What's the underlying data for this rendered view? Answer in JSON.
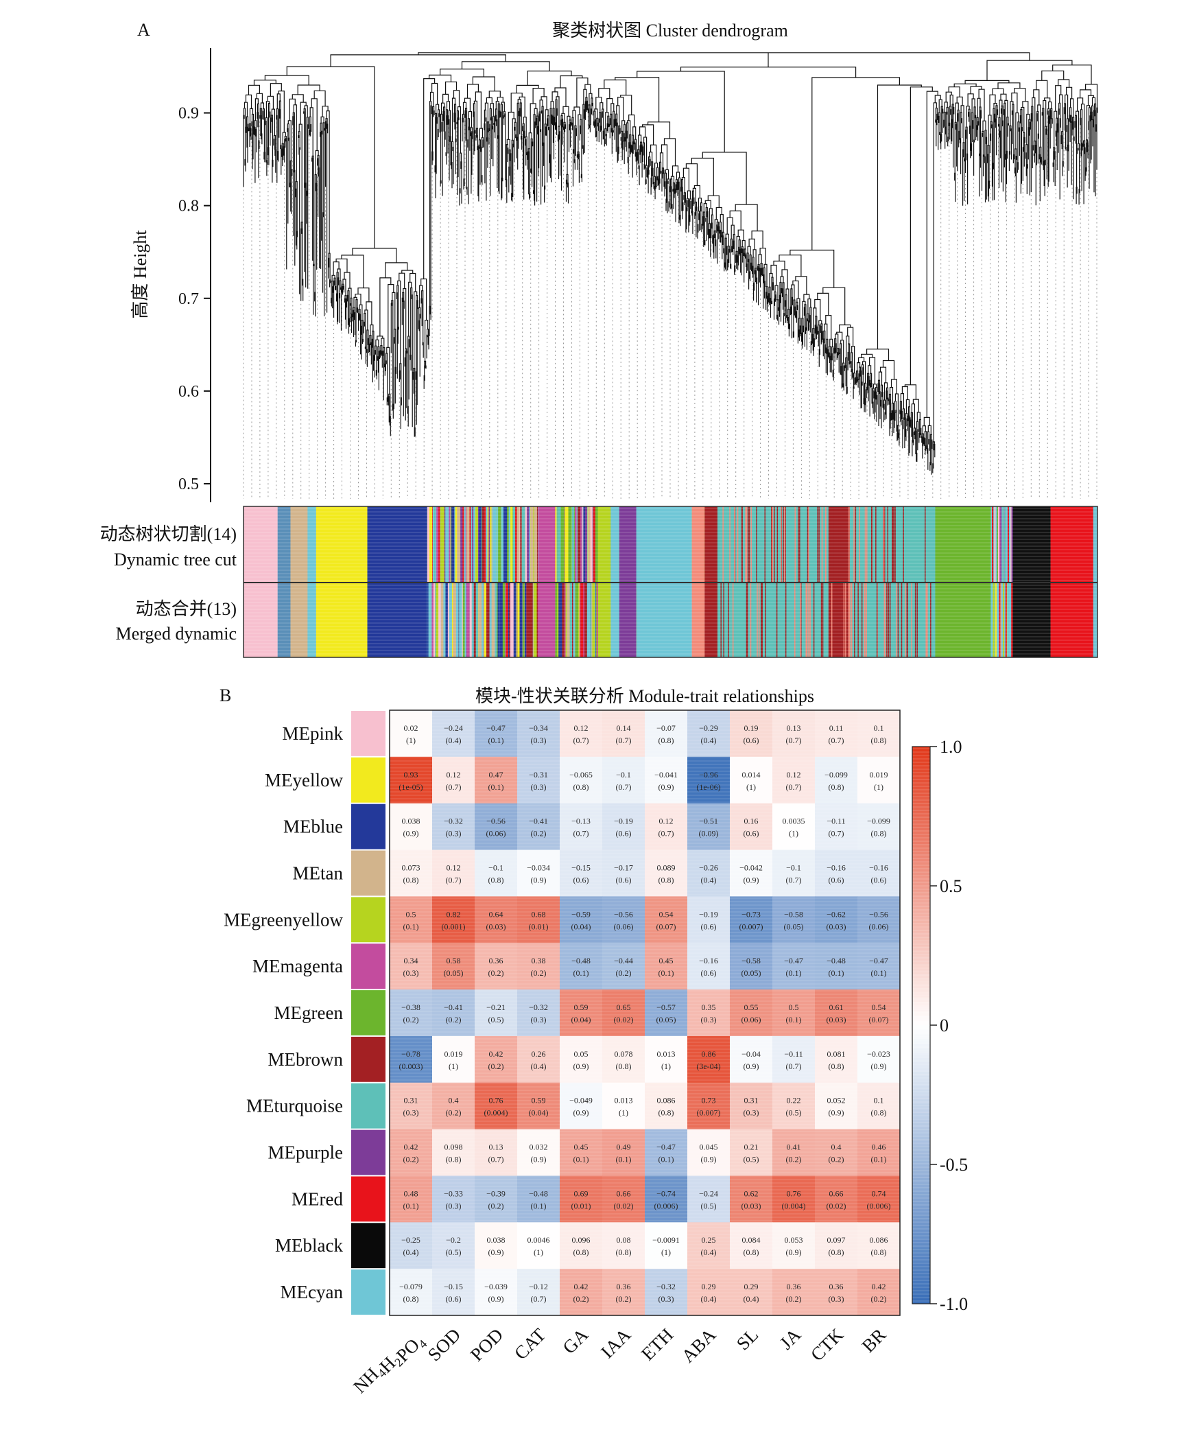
{
  "chart_data": [
    {
      "panel": "A",
      "type": "dendrogram",
      "title": "聚类树状图 Cluster dendrogram",
      "ylabel": "高度 Height",
      "ylim": [
        0.48,
        0.97
      ],
      "yticks": [
        "0.5",
        "0.6",
        "0.7",
        "0.8",
        "0.9"
      ],
      "color_rows": [
        {
          "name_cn": "动态树状切割(14)",
          "name_en": "Dynamic tree cut"
        },
        {
          "name_cn": "动态合并(13)",
          "name_en": "Merged dynamic"
        }
      ],
      "module_segments": [
        {
          "color": "#f7c0cf",
          "from": 0.0,
          "to": 0.04
        },
        {
          "color": "#5a8fb8",
          "from": 0.04,
          "to": 0.055
        },
        {
          "color": "#d2b48c",
          "from": 0.055,
          "to": 0.075
        },
        {
          "color": "#f2ea1e",
          "from": 0.085,
          "to": 0.145
        },
        {
          "color": "#23399a",
          "from": 0.145,
          "to": 0.215
        },
        {
          "color": "#c34c9e",
          "from": 0.345,
          "to": 0.365
        },
        {
          "color": "#b6d41f",
          "from": 0.415,
          "to": 0.43
        },
        {
          "color": "#6fc6d6",
          "from": 0.43,
          "to": 0.44
        },
        {
          "color": "#7d3c98",
          "from": 0.44,
          "to": 0.46
        },
        {
          "color": "#6fc6d6",
          "from": 0.46,
          "to": 0.525
        },
        {
          "color": "#f28b7a",
          "from": 0.525,
          "to": 0.54
        },
        {
          "color": "#a32023",
          "from": 0.54,
          "to": 0.555
        },
        {
          "color": "#5ec0b8",
          "from": 0.555,
          "to": 0.685
        },
        {
          "color": "#a32023",
          "from": 0.685,
          "to": 0.71
        },
        {
          "color": "#5ec0b8",
          "from": 0.71,
          "to": 0.81
        },
        {
          "color": "#6cb52d",
          "from": 0.81,
          "to": 0.875
        },
        {
          "color": "#111111",
          "from": 0.9,
          "to": 0.945
        },
        {
          "color": "#e8131b",
          "from": 0.945,
          "to": 0.995
        }
      ]
    },
    {
      "panel": "B",
      "type": "heatmap",
      "title": "模块-性状关联分析 Module-trait relationships",
      "x_labels": [
        "NH4H2PO4",
        "SOD",
        "POD",
        "CAT",
        "GA",
        "IAA",
        "ETH",
        "ABA",
        "SL",
        "JA",
        "CTK",
        "BR"
      ],
      "x_display": [
        {
          "main": "NH",
          "sub": "4"
        },
        {
          "main": "H",
          "sub": "2"
        },
        {
          "main": "PO",
          "sub": "4"
        }
      ],
      "rows": [
        {
          "module": "MEpink",
          "color": "#f7c0cf",
          "r": [
            0.02,
            -0.24,
            -0.47,
            -0.34,
            0.12,
            0.14,
            -0.07,
            -0.29,
            0.19,
            0.13,
            0.11,
            0.1
          ],
          "r_text": [
            "0.02",
            "−0.24",
            "−0.47",
            "−0.34",
            "0.12",
            "0.14",
            "−0.07",
            "−0.29",
            "0.19",
            "0.13",
            "0.11",
            "0.1"
          ],
          "p_text": [
            "(1)",
            "(0.4)",
            "(0.1)",
            "(0.3)",
            "(0.7)",
            "(0.7)",
            "(0.8)",
            "(0.4)",
            "(0.6)",
            "(0.7)",
            "(0.7)",
            "(0.8)"
          ]
        },
        {
          "module": "MEyellow",
          "color": "#f2ea1e",
          "r": [
            0.93,
            0.12,
            0.47,
            -0.31,
            -0.065,
            -0.1,
            -0.041,
            -0.96,
            0.014,
            0.12,
            -0.099,
            0.019
          ],
          "r_text": [
            "0.93",
            "0.12",
            "0.47",
            "−0.31",
            "−0.065",
            "−0.1",
            "−0.041",
            "−0.96",
            "0.014",
            "0.12",
            "−0.099",
            "0.019"
          ],
          "p_text": [
            "(1e-05)",
            "(0.7)",
            "(0.1)",
            "(0.3)",
            "(0.8)",
            "(0.7)",
            "(0.9)",
            "(1e-06)",
            "(1)",
            "(0.7)",
            "(0.8)",
            "(1)"
          ]
        },
        {
          "module": "MEblue",
          "color": "#23399a",
          "r": [
            0.038,
            -0.32,
            -0.56,
            -0.41,
            -0.13,
            -0.19,
            0.12,
            -0.51,
            0.16,
            0.0035,
            -0.11,
            -0.099
          ],
          "r_text": [
            "0.038",
            "−0.32",
            "−0.56",
            "−0.41",
            "−0.13",
            "−0.19",
            "0.12",
            "−0.51",
            "0.16",
            "0.0035",
            "−0.11",
            "−0.099"
          ],
          "p_text": [
            "(0.9)",
            "(0.3)",
            "(0.06)",
            "(0.2)",
            "(0.7)",
            "(0.6)",
            "(0.7)",
            "(0.09)",
            "(0.6)",
            "(1)",
            "(0.7)",
            "(0.8)"
          ]
        },
        {
          "module": "MEtan",
          "color": "#d2b48c",
          "r": [
            0.073,
            0.12,
            -0.1,
            -0.034,
            -0.15,
            -0.17,
            0.089,
            -0.26,
            -0.042,
            -0.1,
            -0.16,
            -0.16
          ],
          "r_text": [
            "0.073",
            "0.12",
            "−0.1",
            "−0.034",
            "−0.15",
            "−0.17",
            "0.089",
            "−0.26",
            "−0.042",
            "−0.1",
            "−0.16",
            "−0.16"
          ],
          "p_text": [
            "(0.8)",
            "(0.7)",
            "(0.8)",
            "(0.9)",
            "(0.6)",
            "(0.6)",
            "(0.8)",
            "(0.4)",
            "(0.9)",
            "(0.7)",
            "(0.6)",
            "(0.6)"
          ]
        },
        {
          "module": "MEgreenyellow",
          "color": "#b6d41f",
          "r": [
            0.5,
            0.82,
            0.64,
            0.68,
            -0.59,
            -0.56,
            0.54,
            -0.19,
            -0.73,
            -0.58,
            -0.62,
            -0.56
          ],
          "r_text": [
            "0.5",
            "0.82",
            "0.64",
            "0.68",
            "−0.59",
            "−0.56",
            "0.54",
            "−0.19",
            "−0.73",
            "−0.58",
            "−0.62",
            "−0.56"
          ],
          "p_text": [
            "(0.1)",
            "(0.001)",
            "(0.03)",
            "(0.01)",
            "(0.04)",
            "(0.06)",
            "(0.07)",
            "(0.6)",
            "(0.007)",
            "(0.05)",
            "(0.03)",
            "(0.06)"
          ]
        },
        {
          "module": "MEmagenta",
          "color": "#c34c9e",
          "r": [
            0.34,
            0.58,
            0.36,
            0.38,
            -0.48,
            -0.44,
            0.45,
            -0.16,
            -0.58,
            -0.47,
            -0.48,
            -0.47
          ],
          "r_text": [
            "0.34",
            "0.58",
            "0.36",
            "0.38",
            "−0.48",
            "−0.44",
            "0.45",
            "−0.16",
            "−0.58",
            "−0.47",
            "−0.48",
            "−0.47"
          ],
          "p_text": [
            "(0.3)",
            "(0.05)",
            "(0.2)",
            "(0.2)",
            "(0.1)",
            "(0.2)",
            "(0.1)",
            "(0.6)",
            "(0.05)",
            "(0.1)",
            "(0.1)",
            "(0.1)"
          ]
        },
        {
          "module": "MEgreen",
          "color": "#6cb52d",
          "r": [
            -0.38,
            -0.41,
            -0.21,
            -0.32,
            0.59,
            0.65,
            -0.57,
            0.35,
            0.55,
            0.5,
            0.61,
            0.54
          ],
          "r_text": [
            "−0.38",
            "−0.41",
            "−0.21",
            "−0.32",
            "0.59",
            "0.65",
            "−0.57",
            "0.35",
            "0.55",
            "0.5",
            "0.61",
            "0.54"
          ],
          "p_text": [
            "(0.2)",
            "(0.2)",
            "(0.5)",
            "(0.3)",
            "(0.04)",
            "(0.02)",
            "(0.05)",
            "(0.3)",
            "(0.06)",
            "(0.1)",
            "(0.03)",
            "(0.07)"
          ]
        },
        {
          "module": "MEbrown",
          "color": "#a32023",
          "r": [
            -0.78,
            0.019,
            0.42,
            0.26,
            0.05,
            0.078,
            0.013,
            0.86,
            -0.04,
            -0.11,
            0.081,
            -0.023
          ],
          "r_text": [
            "−0.78",
            "0.019",
            "0.42",
            "0.26",
            "0.05",
            "0.078",
            "0.013",
            "0.86",
            "−0.04",
            "−0.11",
            "0.081",
            "−0.023"
          ],
          "p_text": [
            "(0.003)",
            "(1)",
            "(0.2)",
            "(0.4)",
            "(0.9)",
            "(0.8)",
            "(1)",
            "(3e-04)",
            "(0.9)",
            "(0.7)",
            "(0.8)",
            "(0.9)"
          ]
        },
        {
          "module": "MEturquoise",
          "color": "#5ec0b8",
          "r": [
            0.31,
            0.4,
            0.76,
            0.59,
            -0.049,
            0.013,
            0.086,
            0.73,
            0.31,
            0.22,
            0.052,
            0.1
          ],
          "r_text": [
            "0.31",
            "0.4",
            "0.76",
            "0.59",
            "−0.049",
            "0.013",
            "0.086",
            "0.73",
            "0.31",
            "0.22",
            "0.052",
            "0.1"
          ],
          "p_text": [
            "(0.3)",
            "(0.2)",
            "(0.004)",
            "(0.04)",
            "(0.9)",
            "(1)",
            "(0.8)",
            "(0.007)",
            "(0.3)",
            "(0.5)",
            "(0.9)",
            "(0.8)"
          ]
        },
        {
          "module": "MEpurple",
          "color": "#7d3c98",
          "r": [
            0.42,
            0.098,
            0.13,
            0.032,
            0.45,
            0.49,
            -0.47,
            0.045,
            0.21,
            0.41,
            0.4,
            0.46
          ],
          "r_text": [
            "0.42",
            "0.098",
            "0.13",
            "0.032",
            "0.45",
            "0.49",
            "−0.47",
            "0.045",
            "0.21",
            "0.41",
            "0.4",
            "0.46"
          ],
          "p_text": [
            "(0.2)",
            "(0.8)",
            "(0.7)",
            "(0.9)",
            "(0.1)",
            "(0.1)",
            "(0.1)",
            "(0.9)",
            "(0.5)",
            "(0.2)",
            "(0.2)",
            "(0.1)"
          ]
        },
        {
          "module": "MEred",
          "color": "#e8131b",
          "r": [
            0.48,
            -0.33,
            -0.39,
            -0.48,
            0.69,
            0.66,
            -0.74,
            -0.24,
            0.62,
            0.76,
            0.66,
            0.74
          ],
          "r_text": [
            "0.48",
            "−0.33",
            "−0.39",
            "−0.48",
            "0.69",
            "0.66",
            "−0.74",
            "−0.24",
            "0.62",
            "0.76",
            "0.66",
            "0.74"
          ],
          "p_text": [
            "(0.1)",
            "(0.3)",
            "(0.2)",
            "(0.1)",
            "(0.01)",
            "(0.02)",
            "(0.006)",
            "(0.5)",
            "(0.03)",
            "(0.004)",
            "(0.02)",
            "(0.006)"
          ]
        },
        {
          "module": "MEblack",
          "color": "#0a0a0a",
          "r": [
            -0.25,
            -0.2,
            0.038,
            0.0046,
            0.096,
            0.08,
            -0.0091,
            0.25,
            0.084,
            0.053,
            0.097,
            0.086
          ],
          "r_text": [
            "−0.25",
            "−0.2",
            "0.038",
            "0.0046",
            "0.096",
            "0.08",
            "−0.0091",
            "0.25",
            "0.084",
            "0.053",
            "0.097",
            "0.086"
          ],
          "p_text": [
            "(0.4)",
            "(0.5)",
            "(0.9)",
            "(1)",
            "(0.8)",
            "(0.8)",
            "(1)",
            "(0.4)",
            "(0.8)",
            "(0.9)",
            "(0.8)",
            "(0.8)"
          ]
        },
        {
          "module": "MEcyan",
          "color": "#6fc6d6",
          "r": [
            -0.079,
            -0.15,
            -0.039,
            -0.12,
            0.42,
            0.36,
            -0.32,
            0.29,
            0.29,
            0.36,
            0.36,
            0.42
          ],
          "r_text": [
            "−0.079",
            "−0.15",
            "−0.039",
            "−0.12",
            "0.42",
            "0.36",
            "−0.32",
            "0.29",
            "0.29",
            "0.36",
            "0.36",
            "0.42"
          ],
          "p_text": [
            "(0.8)",
            "(0.6)",
            "(0.9)",
            "(0.7)",
            "(0.2)",
            "(0.2)",
            "(0.3)",
            "(0.4)",
            "(0.4)",
            "(0.2)",
            "(0.3)",
            "(0.2)"
          ]
        }
      ],
      "colorbar": {
        "range": [
          -1.0,
          1.0
        ],
        "ticks": [
          "1.0",
          "0.5",
          "0",
          "-0.5",
          "-1.0"
        ],
        "low_color": "#3a6fb8",
        "mid_color": "#ffffff",
        "high_color": "#e23a1c"
      }
    }
  ]
}
